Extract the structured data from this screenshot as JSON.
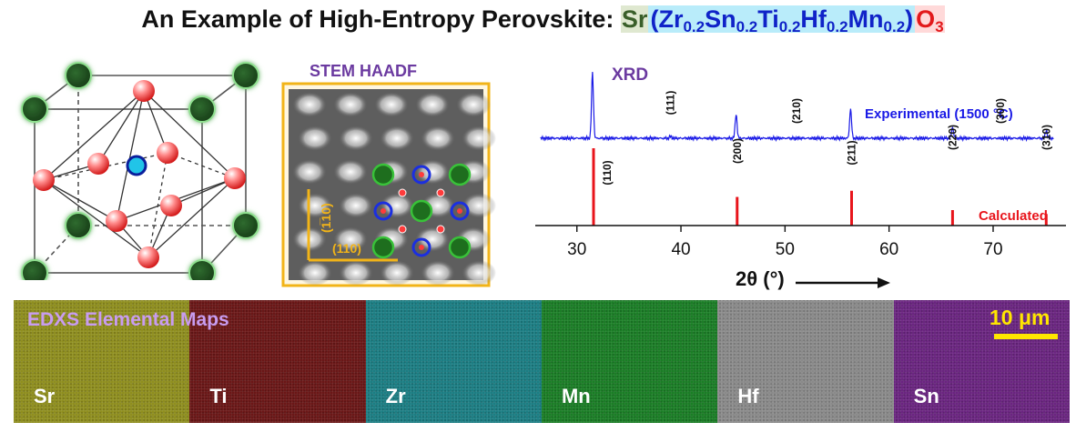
{
  "title": {
    "prefix": "An Example of High-Entropy Perovskite: ",
    "a_site": "Sr",
    "b_site": [
      {
        "el": "Zr",
        "frac": "0.2"
      },
      {
        "el": "Sn",
        "frac": "0.2"
      },
      {
        "el": "Ti",
        "frac": "0.2"
      },
      {
        "el": "Hf",
        "frac": "0.2"
      },
      {
        "el": "Mn",
        "frac": "0.2"
      }
    ],
    "x_site": "O",
    "x_sub": "3"
  },
  "stem": {
    "label": "STEM HAADF",
    "dir_vertical": "(1̅10)",
    "dir_horizontal": "(110)"
  },
  "chart_data": {
    "type": "line",
    "title": "XRD",
    "xlabel": "2θ (°)",
    "x_ticks": [
      30,
      40,
      50,
      60,
      70
    ],
    "xlim": [
      26,
      77
    ],
    "series": [
      {
        "name": "Experimental (1500 °C)",
        "peaks": [
          {
            "x": 31.5,
            "intensity": 1.0
          },
          {
            "x": 39.0,
            "intensity": 0.03
          },
          {
            "x": 45.3,
            "intensity": 0.37
          },
          {
            "x": 56.3,
            "intensity": 0.45
          },
          {
            "x": 66.1,
            "intensity": 0.17
          },
          {
            "x": 75.1,
            "intensity": 0.12
          }
        ]
      },
      {
        "name": "Calculated",
        "peaks": [
          {
            "x": 31.6,
            "intensity": 1.0,
            "hkl": "(110)"
          },
          {
            "x": 39.0,
            "intensity": 0.0,
            "hkl": "(111)"
          },
          {
            "x": 45.4,
            "intensity": 0.37,
            "hkl": "(200)"
          },
          {
            "x": 51.1,
            "intensity": 0.0,
            "hkl": "(210)"
          },
          {
            "x": 56.4,
            "intensity": 0.45,
            "hkl": "(211)"
          },
          {
            "x": 66.1,
            "intensity": 0.2,
            "hkl": "(220)"
          },
          {
            "x": 70.7,
            "intensity": 0.0,
            "hkl": "(300)"
          },
          {
            "x": 75.1,
            "intensity": 0.15,
            "hkl": "(310)"
          }
        ]
      }
    ],
    "colors": {
      "experimental": "#1a1ae6",
      "calculated": "#e8141b",
      "title": "#6b3aa0"
    }
  },
  "edxs": {
    "label": "EDXS Elemental Maps",
    "scale_bar": "10 μm",
    "maps": [
      {
        "element": "Sr",
        "color": "#8f8e1f"
      },
      {
        "element": "Ti",
        "color": "#6a1717"
      },
      {
        "element": "Zr",
        "color": "#1c7e83"
      },
      {
        "element": "Mn",
        "color": "#1b7d26"
      },
      {
        "element": "Hf",
        "color": "#8a8a8a"
      },
      {
        "element": "Sn",
        "color": "#6a2580"
      }
    ]
  }
}
